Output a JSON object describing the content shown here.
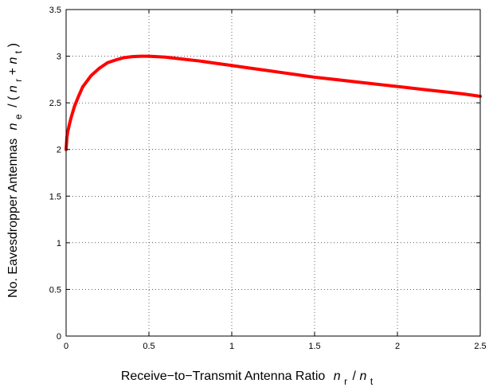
{
  "chart_data": {
    "type": "line",
    "title": "",
    "xlabel": {
      "text": "Receive−to−Transmit Antenna Ratio",
      "symbol_1": "n",
      "sub_1": "r",
      "slash": "/",
      "symbol_2": "n",
      "sub_2": "t"
    },
    "ylabel": {
      "text": "No. Eavesdropper Antennas",
      "symbol_1": "n",
      "sub_1": "e",
      "slash": "/",
      "open_paren": "(",
      "symbol_2": "n",
      "sub_2": "r",
      "plus": "+",
      "symbol_3": "n",
      "sub_3": "t",
      "close_paren": ")"
    },
    "xlim": [
      0,
      2.5
    ],
    "ylim": [
      0,
      3.5
    ],
    "x_ticks": [
      0,
      0.5,
      1,
      1.5,
      2,
      2.5
    ],
    "x_tick_labels": [
      "0",
      "0.5",
      "1",
      "1.5",
      "2",
      "2.5"
    ],
    "y_ticks": [
      0,
      0.5,
      1,
      1.5,
      2,
      2.5,
      3,
      3.5
    ],
    "y_tick_labels": [
      "0",
      "0.5",
      "1",
      "1.5",
      "2",
      "2.5",
      "3",
      "3.5"
    ],
    "grid": true,
    "series": [
      {
        "color": "#ff0000",
        "x": [
          0,
          0.005,
          0.01,
          0.02,
          0.03,
          0.05,
          0.075,
          0.1,
          0.15,
          0.2,
          0.25,
          0.3,
          0.35,
          0.4,
          0.45,
          0.5,
          0.6,
          0.7,
          0.8,
          0.9,
          1.0,
          1.1,
          1.2,
          1.3,
          1.4,
          1.5,
          1.6,
          1.7,
          1.8,
          1.9,
          2.0,
          2.1,
          2.2,
          2.3,
          2.4,
          2.5
        ],
        "y": [
          2.0,
          2.13,
          2.19,
          2.27,
          2.34,
          2.46,
          2.57,
          2.67,
          2.79,
          2.87,
          2.93,
          2.96,
          2.985,
          2.995,
          3.0,
          3.0,
          2.99,
          2.97,
          2.95,
          2.925,
          2.9,
          2.875,
          2.85,
          2.825,
          2.8,
          2.775,
          2.755,
          2.735,
          2.715,
          2.695,
          2.675,
          2.655,
          2.635,
          2.615,
          2.595,
          2.57
        ]
      }
    ]
  }
}
